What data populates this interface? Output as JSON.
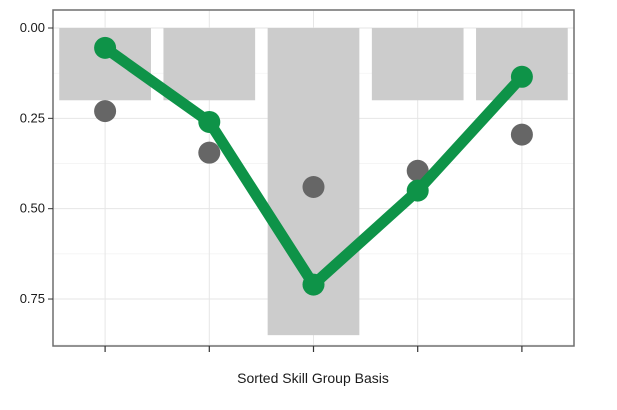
{
  "chart_data": {
    "type": "bar",
    "xlabel": "Sorted Skill Group Basis",
    "ylabel": "",
    "y_reversed": true,
    "ylim": [
      0.0,
      0.88
    ],
    "yticks": [
      "0.00",
      "0.25",
      "0.50",
      "0.75"
    ],
    "yticks_values": [
      0.0,
      0.25,
      0.5,
      0.75
    ],
    "categories": [
      "",
      "",
      "",
      "",
      ""
    ],
    "grid": true,
    "series": [
      {
        "kind": "bar",
        "values": [
          0.2,
          0.2,
          0.85,
          0.2,
          0.2
        ],
        "color": "#cccccc"
      },
      {
        "kind": "points",
        "values": [
          0.23,
          0.345,
          0.44,
          0.395,
          0.295
        ],
        "color": "#666666"
      },
      {
        "kind": "line",
        "values": [
          0.055,
          0.26,
          0.71,
          0.45,
          0.135
        ],
        "color": "#0e9348"
      }
    ]
  }
}
